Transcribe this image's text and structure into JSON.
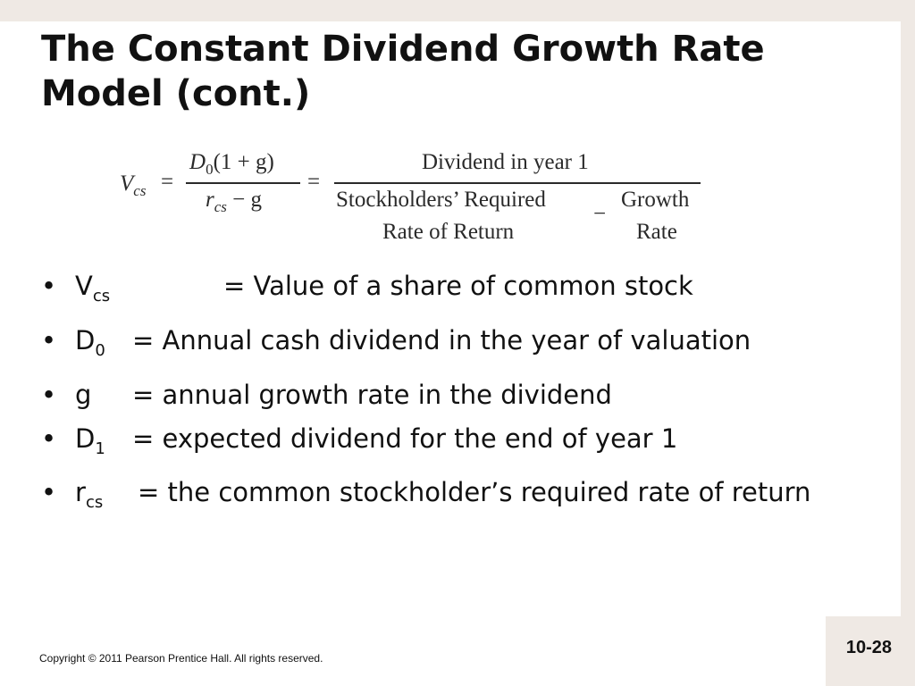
{
  "title": "The Constant Dividend Growth Rate Model (cont.)",
  "formula": {
    "lhs_var": "V",
    "lhs_sub": "cs",
    "eq": "=",
    "num1_var": "D",
    "num1_sub": "0",
    "num1_rest": "(1 + g)",
    "den1_var": "r",
    "den1_sub": "cs",
    "den1_rest": " − g",
    "numerator2": "Dividend in year 1",
    "den2_left_line1": "Stockholders’ Required",
    "den2_left_line2": "Rate of Return",
    "minus": "−",
    "den2_right_line1": "Growth",
    "den2_right_line2": "Rate"
  },
  "bullets": [
    {
      "term": "V",
      "sub": "cs",
      "gap": "          ",
      "text": "= Value of a share of common stock"
    },
    {
      "term": "D",
      "sub": "0",
      "gap": "  ",
      "text": "= Annual cash dividend in the year of valuation"
    },
    {
      "term": "g",
      "sub": "",
      "gap": "    ",
      "text": "= annual growth rate in the dividend"
    },
    {
      "term": "D",
      "sub": "1",
      "gap": "  ",
      "text": "= expected dividend for the end of year 1"
    },
    {
      "term": "r",
      "sub": "cs",
      "gap": "   ",
      "text": "= the common stockholder’s required rate of return"
    }
  ],
  "bullet_glyph": "•",
  "footer": {
    "copyright": "Copyright © 2011 Pearson Prentice Hall. All rights reserved.",
    "page_number": "10-28"
  }
}
